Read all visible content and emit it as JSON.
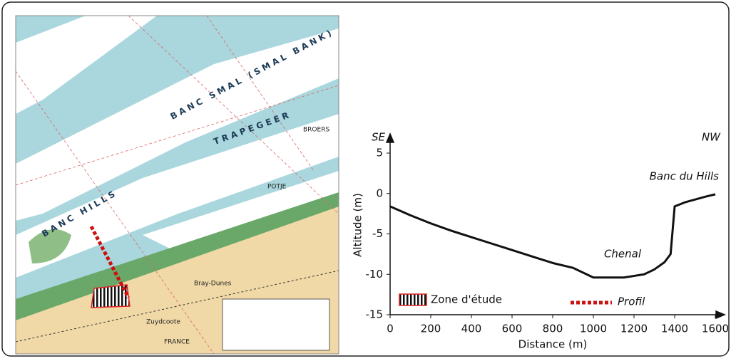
{
  "chart_data": {
    "type": "line",
    "x_label": "Distance (m)",
    "y_label": "Altitude (m)",
    "annotations": {
      "left": "SE",
      "right": "NW",
      "bank": "Banc du Hills",
      "channel": "Chenal"
    },
    "x": [
      0,
      100,
      200,
      300,
      400,
      500,
      600,
      700,
      800,
      900,
      1000,
      1150,
      1250,
      1300,
      1350,
      1380,
      1400,
      1450,
      1550,
      1600
    ],
    "series": [
      {
        "name": "Profil",
        "color": "#111111",
        "values": [
          -1.6,
          -2.7,
          -3.7,
          -4.6,
          -5.4,
          -6.2,
          -7.0,
          -7.8,
          -8.6,
          -9.2,
          -10.4,
          -10.4,
          -10.0,
          -9.4,
          -8.5,
          -7.5,
          -1.6,
          -1.1,
          -0.4,
          -0.1
        ]
      }
    ],
    "legend": {
      "zone": "Zone d'étude",
      "profile": "Profil"
    },
    "xlim": [
      0,
      1600
    ],
    "xticks": [
      0,
      200,
      400,
      600,
      800,
      1000,
      1200,
      1400,
      1600
    ],
    "ylim": [
      -15,
      5
    ],
    "yticks": [
      -15,
      -10,
      -5,
      0,
      5
    ],
    "grid": false
  },
  "map_labels": [
    "BANC SMAL (SMAL BANK)",
    "TRAPEGEER",
    "BANC HILLS",
    "POTJE",
    "BROERS",
    "Bray-Dunes",
    "Zuydcoote",
    "FRANCE"
  ]
}
